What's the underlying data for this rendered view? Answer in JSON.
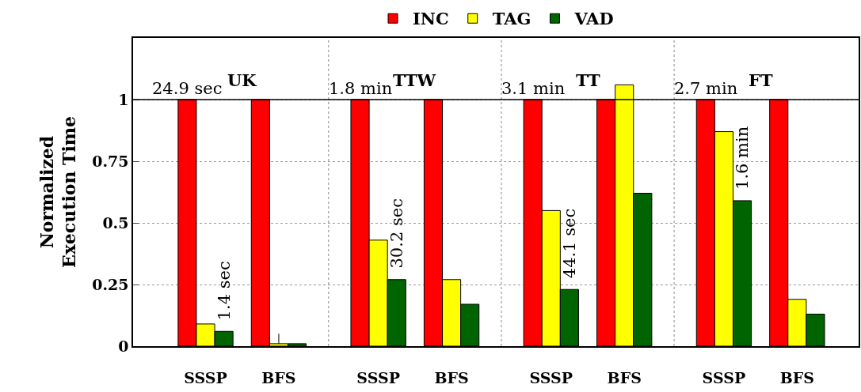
{
  "chart_data": {
    "type": "bar",
    "ylabel": "Normalized\nExecution Time",
    "categories": [
      "SSSP",
      "BFS",
      "SSSP",
      "BFS",
      "SSSP",
      "BFS",
      "SSSP",
      "BFS"
    ],
    "series": [
      {
        "name": "INC",
        "color": "#ff0000",
        "values": [
          1,
          1,
          1,
          1,
          1,
          1,
          1,
          1
        ]
      },
      {
        "name": "TAG",
        "color": "#ffff00",
        "values": [
          0.09,
          0.01,
          0.43,
          0.27,
          0.55,
          1.06,
          0.87,
          0.19
        ],
        "errors": [
          null,
          [
            0.01,
            0.05
          ],
          null,
          null,
          null,
          null,
          null,
          null
        ]
      },
      {
        "name": "VAD",
        "color": "#006400",
        "values": [
          0.06,
          0.01,
          0.27,
          0.17,
          0.23,
          0.62,
          0.59,
          0.13
        ]
      }
    ],
    "ylim": [
      0,
      1.25
    ],
    "yticks": [
      0,
      0.25,
      0.5,
      0.75,
      1
    ],
    "grid": "y",
    "legend": "top",
    "ref_lines": [
      {
        "axis": "y",
        "value": 1,
        "color": "#000000",
        "line_style": "solid"
      }
    ],
    "annotations": [
      "UK",
      "TTW",
      "TT",
      "FT",
      "24.9 sec",
      "1.8 min",
      "3.1 min",
      "2.7 min",
      "1.4 sec",
      "30.2 sec",
      "44.1 sec",
      "1.6 min"
    ]
  }
}
